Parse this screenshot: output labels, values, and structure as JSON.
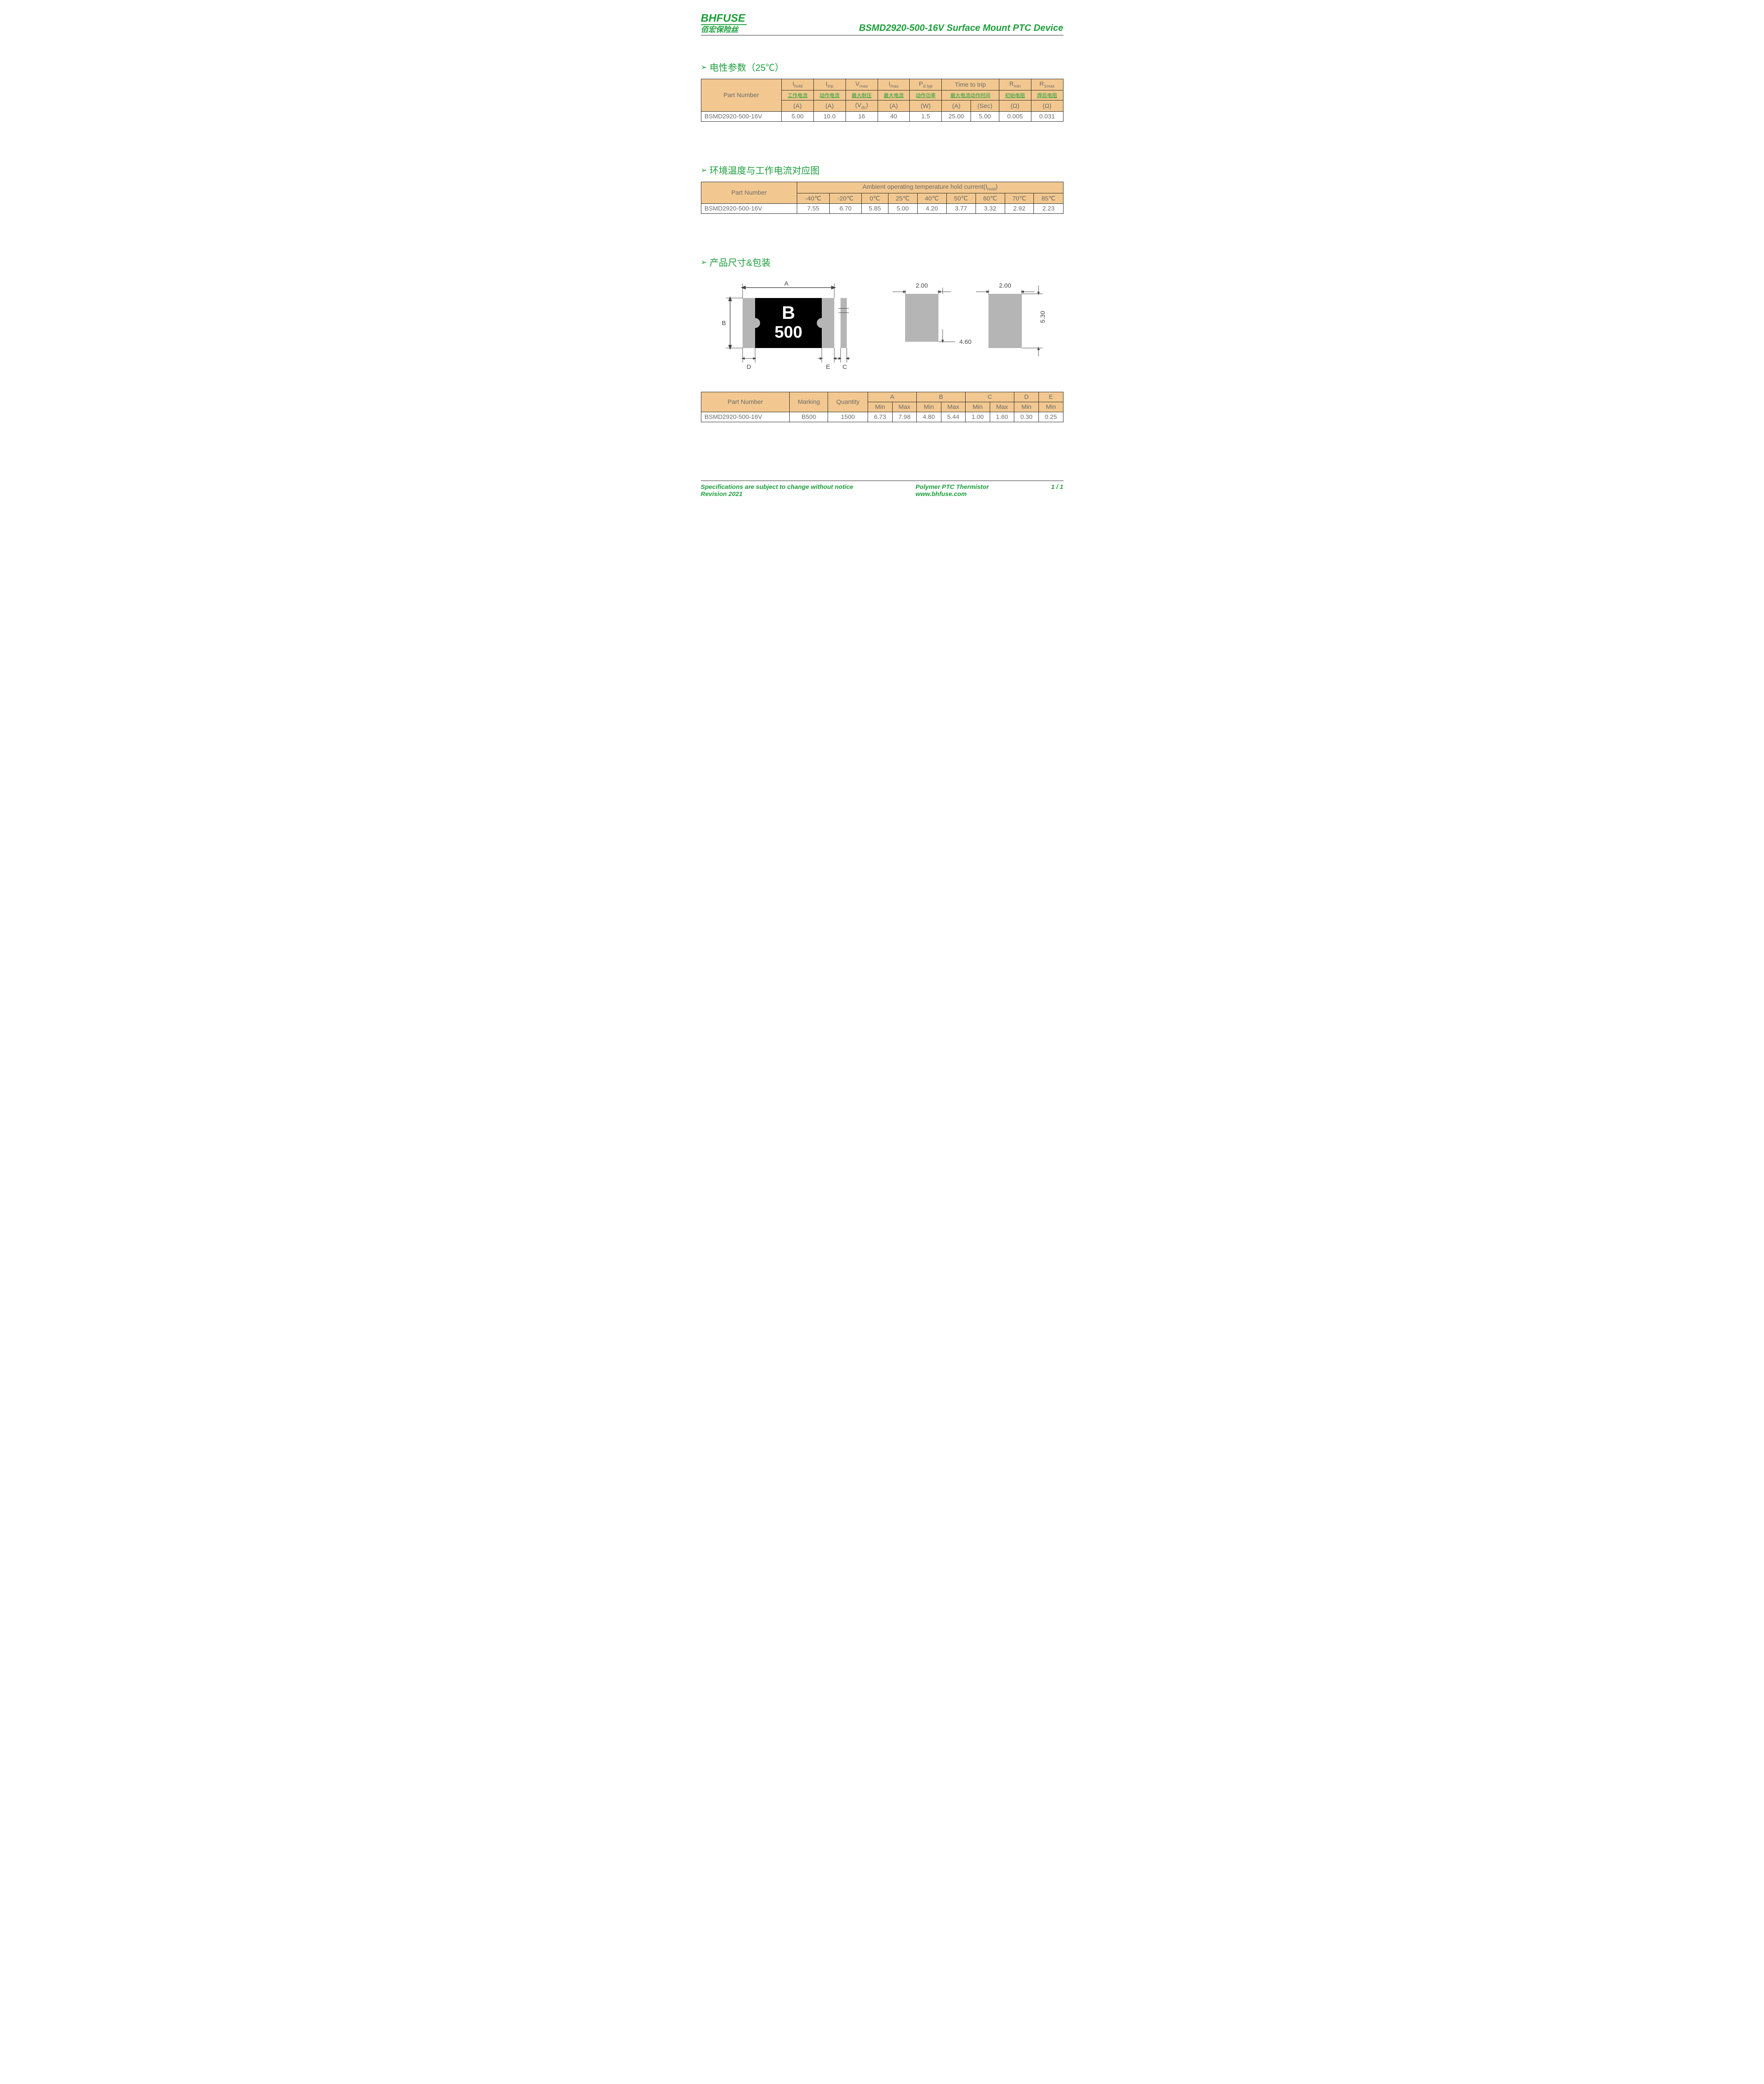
{
  "header": {
    "logo_en": "BHFUSE",
    "logo_cn": "佰宏保险丝",
    "title": "BSMD2920-500-16V Surface Mount PTC Device"
  },
  "sections": {
    "elec": "电性参数（25℃）",
    "temp": "环境温度与工作电流对应图",
    "dim": "产品尺寸&包装"
  },
  "elec_table": {
    "part_label": "Part Number",
    "cols": [
      {
        "sym": "I<sub>hold</sub>",
        "cn": "工作电流",
        "unit": "(A)"
      },
      {
        "sym": "I<sub>trip</sub>",
        "cn": "动作电流",
        "unit": "(A)"
      },
      {
        "sym": "V<sub>max</sub>",
        "cn": "最大耐压",
        "unit": "(V<sub>dc</sub>)"
      },
      {
        "sym": "I<sub>max</sub>",
        "cn": "最大电流",
        "unit": "(A)"
      },
      {
        "sym": "P<sub>d typ</sub>",
        "cn": "动作功率",
        "unit": "(W)"
      },
      {
        "sym": "Time to trip",
        "cn": "最大电流动作时间",
        "unit_a": "(A)",
        "unit_b": "(Sec)"
      },
      {
        "sym": "R<sub>min</sub>",
        "cn": "初始电阻",
        "unit": "(Ω)"
      },
      {
        "sym": "R<sub>1max</sub>",
        "cn": "焊后电阻",
        "unit": "(Ω)"
      }
    ],
    "row": {
      "pn": "BSMD2920-500-16V",
      "vals": [
        "5.00",
        "10.0",
        "16",
        "40",
        "1.5",
        "25.00",
        "5.00",
        "0.005",
        "0.031"
      ]
    }
  },
  "temp_table": {
    "part_label": "Part Number",
    "head": "Ambient operating temperature hold current(I<sub>hold</sub>)",
    "temps": [
      "-40℃",
      "-20℃",
      "0℃",
      "25℃",
      "40℃",
      "50℃",
      "60℃",
      "70℃",
      "85℃"
    ],
    "row": {
      "pn": "BSMD2920-500-16V",
      "vals": [
        "7.55",
        "6.70",
        "5.85",
        "5.00",
        "4.20",
        "3.77",
        "3.32",
        "2.92",
        "2.23"
      ]
    }
  },
  "marking": {
    "line1": "B",
    "line2": "500"
  },
  "pad_dims": {
    "w": "2.00",
    "h": "4.60",
    "h2": "5.30"
  },
  "dim_table": {
    "part_label": "Part Number",
    "marking_label": "Marking",
    "qty_label": "Quantity",
    "groups": [
      "A",
      "B",
      "C",
      "D",
      "E"
    ],
    "sub": [
      "Min",
      "Max",
      "Min",
      "Max",
      "Min",
      "Max",
      "Min",
      "Min"
    ],
    "row": {
      "pn": "BSMD2920-500-16V",
      "marking": "B500",
      "qty": "1500",
      "vals": [
        "6.73",
        "7.98",
        "4.80",
        "5.44",
        "1.00",
        "1.60",
        "0.30",
        "0.25"
      ]
    }
  },
  "footer": {
    "left1": "Specifications are subject to change without notice",
    "left2": "Revision 2021",
    "mid1": "Polymer PTC Thermistor",
    "mid2": "www.bhfuse.com",
    "page": "1 / 1"
  }
}
